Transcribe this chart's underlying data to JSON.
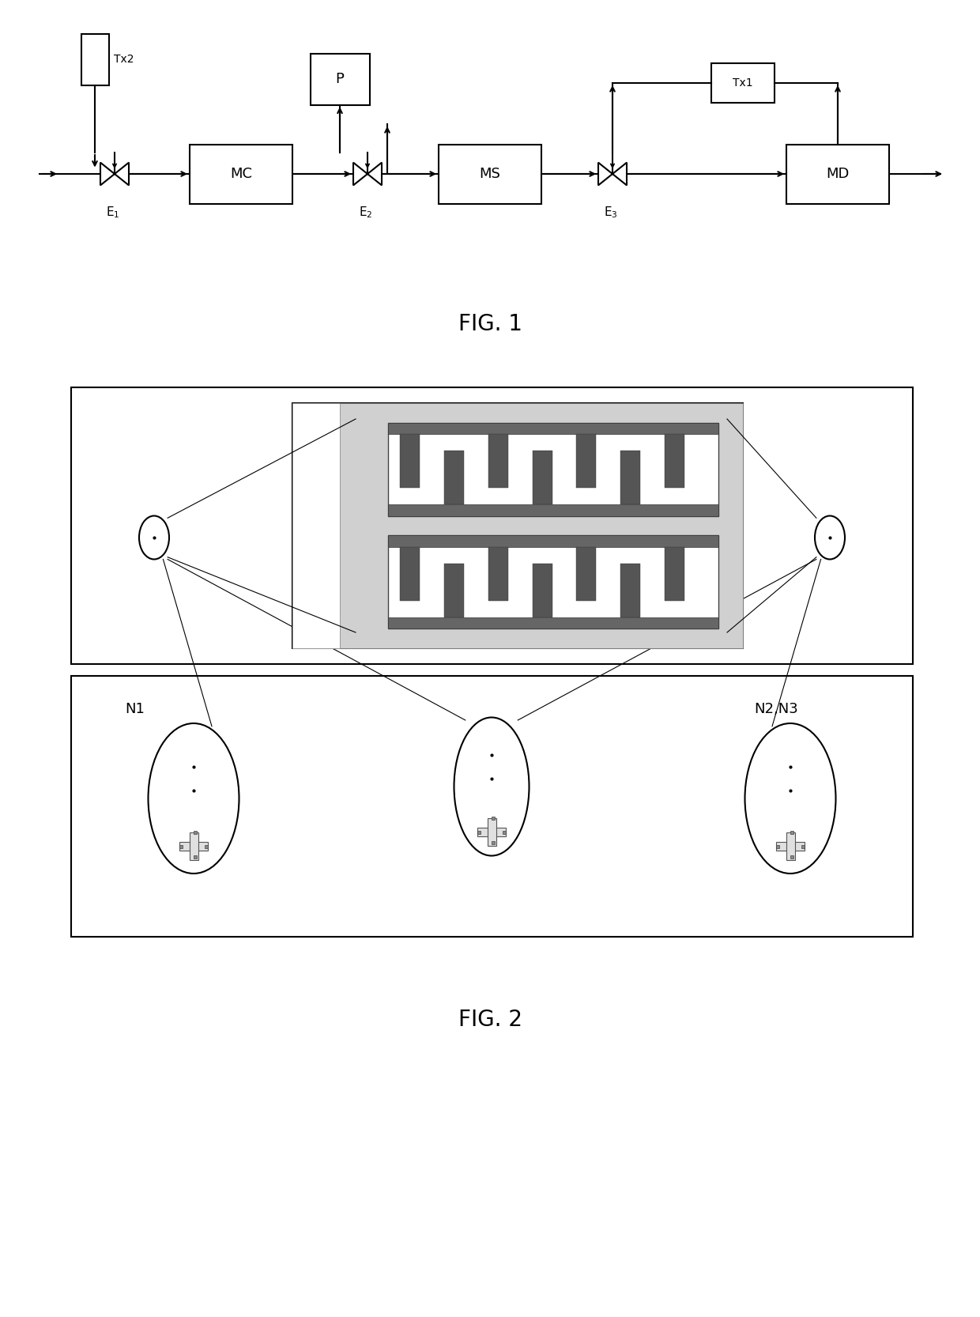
{
  "fig_width": 12.4,
  "fig_height": 16.66,
  "bg_color": "#ffffff",
  "line_color": "#000000",
  "fig1_label": "FIG. 1",
  "fig2_label": "FIG. 2",
  "N1_label": "N1",
  "N23_label": "N2,N3",
  "tx2_label": "Tx2",
  "tx1_label": "Tx1",
  "p_label": "P",
  "mc_label": "MC",
  "ms_label": "MS",
  "md_label": "MD",
  "e1_label": "E",
  "e2_label": "E",
  "e3_label": "E"
}
